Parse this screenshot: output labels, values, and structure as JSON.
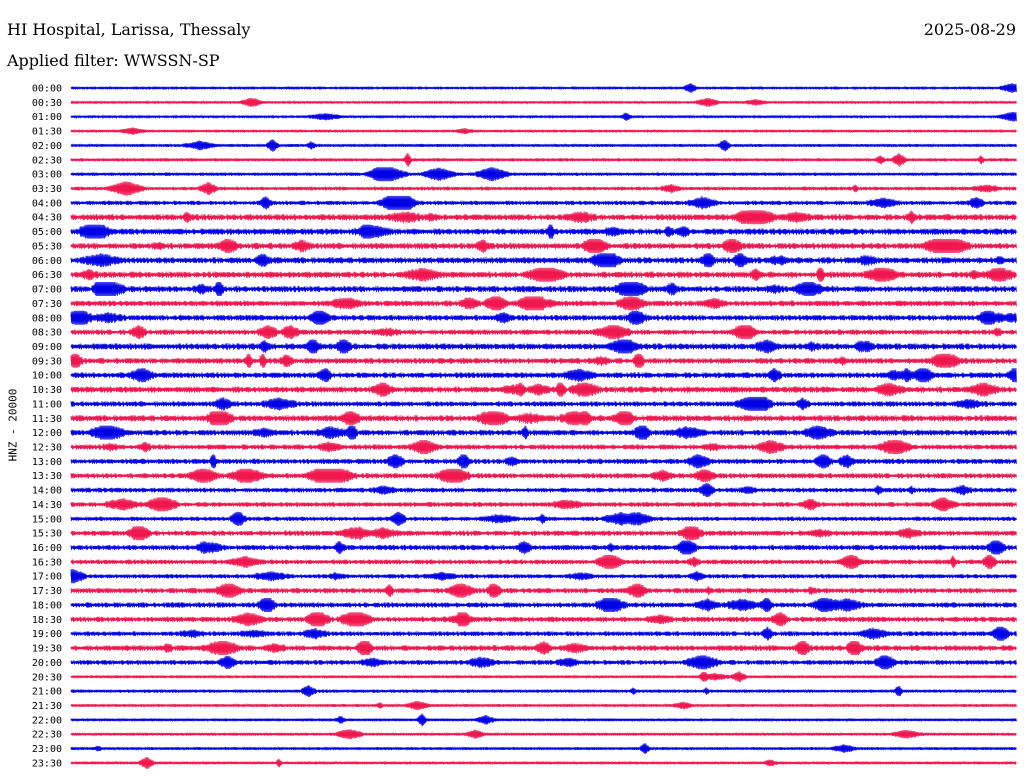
{
  "header": {
    "station": "HI Hospital, Larissa, Thessaly",
    "date": "2025-08-29",
    "filter": "Applied filter: WWSSN-SP"
  },
  "chart_data": {
    "type": "line",
    "title": "HI Hospital, Larissa, Thessaly",
    "subtitle": "Applied filter: WWSSN-SP",
    "date": "2025-08-29",
    "ylabel": "HNZ - 20000",
    "xlabel": "",
    "grid": false,
    "colors": [
      "#0000e6",
      "#f0174f"
    ],
    "series": [
      {
        "label": "00:00",
        "level": 0.02
      },
      {
        "label": "00:30",
        "level": 0.05
      },
      {
        "label": "01:00",
        "level": 0.04
      },
      {
        "label": "01:30",
        "level": 0.02
      },
      {
        "label": "02:00",
        "level": 0.12
      },
      {
        "label": "02:30",
        "level": 0.15
      },
      {
        "label": "03:00",
        "level": 0.15
      },
      {
        "label": "03:30",
        "level": 0.2
      },
      {
        "label": "04:00",
        "level": 0.25
      },
      {
        "label": "04:30",
        "level": 0.45
      },
      {
        "label": "05:00",
        "level": 0.45
      },
      {
        "label": "05:30",
        "level": 0.45
      },
      {
        "label": "06:00",
        "level": 0.45
      },
      {
        "label": "06:30",
        "level": 0.45
      },
      {
        "label": "07:00",
        "level": 0.45
      },
      {
        "label": "07:30",
        "level": 0.4
      },
      {
        "label": "08:00",
        "level": 0.4
      },
      {
        "label": "08:30",
        "level": 0.35
      },
      {
        "label": "09:00",
        "level": 0.45
      },
      {
        "label": "09:30",
        "level": 0.4
      },
      {
        "label": "10:00",
        "level": 0.4
      },
      {
        "label": "10:30",
        "level": 0.45
      },
      {
        "label": "11:00",
        "level": 0.35
      },
      {
        "label": "11:30",
        "level": 0.45
      },
      {
        "label": "12:00",
        "level": 0.4
      },
      {
        "label": "12:30",
        "level": 0.35
      },
      {
        "label": "13:00",
        "level": 0.35
      },
      {
        "label": "13:30",
        "level": 0.35
      },
      {
        "label": "14:00",
        "level": 0.3
      },
      {
        "label": "14:30",
        "level": 0.3
      },
      {
        "label": "15:00",
        "level": 0.25
      },
      {
        "label": "15:30",
        "level": 0.35
      },
      {
        "label": "16:00",
        "level": 0.35
      },
      {
        "label": "16:30",
        "level": 0.3
      },
      {
        "label": "17:00",
        "level": 0.25
      },
      {
        "label": "17:30",
        "level": 0.35
      },
      {
        "label": "18:00",
        "level": 0.35
      },
      {
        "label": "18:30",
        "level": 0.35
      },
      {
        "label": "19:00",
        "level": 0.3
      },
      {
        "label": "19:30",
        "level": 0.4
      },
      {
        "label": "20:00",
        "level": 0.3
      },
      {
        "label": "20:30",
        "level": 0.1
      },
      {
        "label": "21:00",
        "level": 0.15
      },
      {
        "label": "21:30",
        "level": 0.1
      },
      {
        "label": "22:00",
        "level": 0.1
      },
      {
        "label": "22:30",
        "level": 0.1
      },
      {
        "label": "23:00",
        "level": 0.1
      },
      {
        "label": "23:30",
        "level": 0.08
      }
    ]
  }
}
